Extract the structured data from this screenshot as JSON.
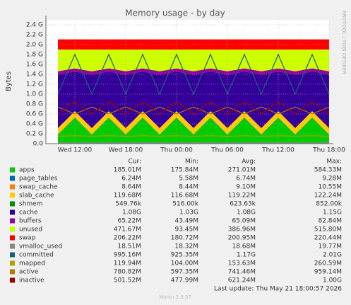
{
  "chart_data": {
    "type": "area",
    "title": "Memory usage - by day",
    "y_label": "Bytes",
    "side_label": "RRDTOOL / TOBI OETIKER",
    "x": [
      "Wed 10:00",
      "Wed 12:00",
      "Wed 14:00",
      "Wed 16:00",
      "Wed 18:00",
      "Wed 20:00",
      "Wed 22:00",
      "Thu 00:00",
      "Thu 02:00",
      "Thu 04:00",
      "Thu 06:00",
      "Thu 08:00",
      "Thu 10:00",
      "Thu 12:00",
      "Thu 14:00",
      "Thu 16:00",
      "Thu 18:00"
    ],
    "xticks": [
      "Wed 12:00",
      "Wed 18:00",
      "Thu 00:00",
      "Thu 06:00",
      "Thu 12:00",
      "Thu 18:00"
    ],
    "ylim": [
      0,
      2500000000
    ],
    "yticks": [
      {
        "value": 0,
        "label": "0.0"
      },
      {
        "value": 200000000,
        "label": "0.2 G"
      },
      {
        "value": 400000000,
        "label": "0.4 G"
      },
      {
        "value": 600000000,
        "label": "0.6 G"
      },
      {
        "value": 800000000,
        "label": "0.8 G"
      },
      {
        "value": 1000000000,
        "label": "1.0 G"
      },
      {
        "value": 1200000000,
        "label": "1.2 G"
      },
      {
        "value": 1400000000,
        "label": "1.4 G"
      },
      {
        "value": 1600000000,
        "label": "1.6 G"
      },
      {
        "value": 1800000000,
        "label": "1.8 G"
      },
      {
        "value": 2000000000,
        "label": "2.0 G"
      },
      {
        "value": 2200000000,
        "label": "2.2 G"
      },
      {
        "value": 2400000000,
        "label": "2.4 G"
      }
    ],
    "grid": true,
    "stat_headers": [
      "Cur:",
      "Min:",
      "Avg:",
      "Max:"
    ],
    "series": [
      {
        "name": "apps",
        "color": "#00cc00",
        "stacked": true,
        "cur": "185.01M",
        "min": "175.84M",
        "avg": "271.01M",
        "max": "584.33M",
        "values": [
          180000000,
          520000000,
          180000000,
          520000000,
          180000000,
          520000000,
          180000000,
          520000000,
          180000000,
          520000000,
          180000000,
          520000000,
          180000000,
          520000000,
          180000000,
          520000000,
          180000000
        ]
      },
      {
        "name": "page_tables",
        "color": "#0066b3",
        "stacked": true,
        "cur": "6.24M",
        "min": "5.58M",
        "avg": "6.74M",
        "max": "9.28M",
        "values": [
          6500000,
          6500000,
          6500000,
          6500000,
          6500000,
          6500000,
          6500000,
          6500000,
          6500000,
          6500000,
          6500000,
          6500000,
          6500000,
          6500000,
          6500000,
          6500000,
          6500000
        ]
      },
      {
        "name": "swap_cache",
        "color": "#ff8000",
        "stacked": true,
        "cur": "8.64M",
        "min": "8.44M",
        "avg": "9.10M",
        "max": "10.55M",
        "values": [
          9000000,
          9000000,
          9000000,
          9000000,
          9000000,
          9000000,
          9000000,
          9000000,
          9000000,
          9000000,
          9000000,
          9000000,
          9000000,
          9000000,
          9000000,
          9000000,
          9000000
        ]
      },
      {
        "name": "slab_cache",
        "color": "#ffcc00",
        "stacked": true,
        "cur": "119.68M",
        "min": "116.68M",
        "avg": "119.22M",
        "max": "122.24M",
        "values": [
          119000000,
          119000000,
          119000000,
          119000000,
          119000000,
          119000000,
          119000000,
          119000000,
          119000000,
          119000000,
          119000000,
          119000000,
          119000000,
          119000000,
          119000000,
          119000000,
          119000000
        ]
      },
      {
        "name": "shmem",
        "color": "#008f00",
        "stacked": true,
        "cur": "549.76k",
        "min": "516.00k",
        "avg": "623.63k",
        "max": "852.00k",
        "values": [
          600000,
          600000,
          600000,
          600000,
          600000,
          600000,
          600000,
          600000,
          600000,
          600000,
          600000,
          600000,
          600000,
          600000,
          600000,
          600000,
          600000
        ]
      },
      {
        "name": "cache",
        "color": "#330099",
        "stacked": true,
        "cur": "1.08G",
        "min": "1.03G",
        "avg": "1.08G",
        "max": "1.15G",
        "values": [
          1080000000,
          800000000,
          1080000000,
          800000000,
          1080000000,
          800000000,
          1080000000,
          800000000,
          1080000000,
          800000000,
          1080000000,
          800000000,
          1080000000,
          800000000,
          1080000000,
          800000000,
          1080000000
        ]
      },
      {
        "name": "buffers",
        "color": "#990099",
        "stacked": true,
        "cur": "65.22M",
        "min": "43.49M",
        "avg": "65.09M",
        "max": "82.84M",
        "values": [
          65000000,
          65000000,
          65000000,
          65000000,
          65000000,
          65000000,
          65000000,
          65000000,
          65000000,
          65000000,
          65000000,
          65000000,
          65000000,
          65000000,
          65000000,
          65000000,
          65000000
        ]
      },
      {
        "name": "unused",
        "color": "#ccff00",
        "stacked": true,
        "cur": "471.67M",
        "min": "93.45M",
        "avg": "386.96M",
        "max": "515.80M",
        "values": [
          440000000,
          380000000,
          440000000,
          380000000,
          440000000,
          380000000,
          440000000,
          380000000,
          440000000,
          380000000,
          440000000,
          380000000,
          440000000,
          380000000,
          440000000,
          380000000,
          440000000
        ]
      },
      {
        "name": "swap",
        "color": "#ff0000",
        "stacked": true,
        "cur": "206.22M",
        "min": "180.72M",
        "avg": "200.95M",
        "max": "220.44M",
        "values": [
          206000000,
          206000000,
          206000000,
          206000000,
          206000000,
          206000000,
          206000000,
          206000000,
          206000000,
          206000000,
          206000000,
          206000000,
          206000000,
          206000000,
          206000000,
          206000000,
          206000000
        ]
      },
      {
        "name": "vmalloc_used",
        "color": "#888888",
        "stacked": false,
        "cur": "18.51M",
        "min": "18.32M",
        "avg": "18.68M",
        "max": "19.77M",
        "values": [
          18500000,
          18500000,
          18500000,
          18500000,
          18500000,
          18500000,
          18500000,
          18500000,
          18500000,
          18500000,
          18500000,
          18500000,
          18500000,
          18500000,
          18500000,
          18500000,
          18500000
        ]
      },
      {
        "name": "committed",
        "color": "#1a6080",
        "stacked": false,
        "cur": "995.16M",
        "min": "925.35M",
        "avg": "1.17G",
        "max": "2.01G",
        "values": [
          1000000000,
          1800000000,
          1000000000,
          1800000000,
          1000000000,
          1800000000,
          1000000000,
          1800000000,
          1000000000,
          1800000000,
          1000000000,
          1800000000,
          1000000000,
          1800000000,
          1000000000,
          1800000000,
          1000000000
        ]
      },
      {
        "name": "mapped",
        "color": "#b3a000",
        "stacked": false,
        "cur": "119.94M",
        "min": "104.00M",
        "avg": "153.63M",
        "max": "260.59M",
        "values": [
          150000000,
          160000000,
          150000000,
          160000000,
          150000000,
          160000000,
          150000000,
          160000000,
          150000000,
          160000000,
          150000000,
          160000000,
          150000000,
          160000000,
          150000000,
          160000000,
          150000000
        ]
      },
      {
        "name": "active",
        "color": "#b37a00",
        "stacked": false,
        "cur": "780.82M",
        "min": "597.35M",
        "avg": "741.46M",
        "max": "959.14M",
        "values": [
          740000000,
          600000000,
          740000000,
          600000000,
          740000000,
          600000000,
          740000000,
          600000000,
          740000000,
          600000000,
          740000000,
          600000000,
          740000000,
          600000000,
          740000000,
          600000000,
          740000000
        ]
      },
      {
        "name": "inactive",
        "color": "#a00000",
        "stacked": false,
        "cur": "501.52M",
        "min": "477.99M",
        "avg": "621.24M",
        "max": "1.00G",
        "values": [
          600000000,
          850000000,
          600000000,
          850000000,
          600000000,
          850000000,
          600000000,
          850000000,
          600000000,
          850000000,
          600000000,
          850000000,
          600000000,
          850000000,
          600000000,
          850000000,
          600000000
        ]
      }
    ],
    "last_update": "Last update: Thu May 21 18:00:57 2026",
    "footer": "Munin 2.0.57"
  }
}
